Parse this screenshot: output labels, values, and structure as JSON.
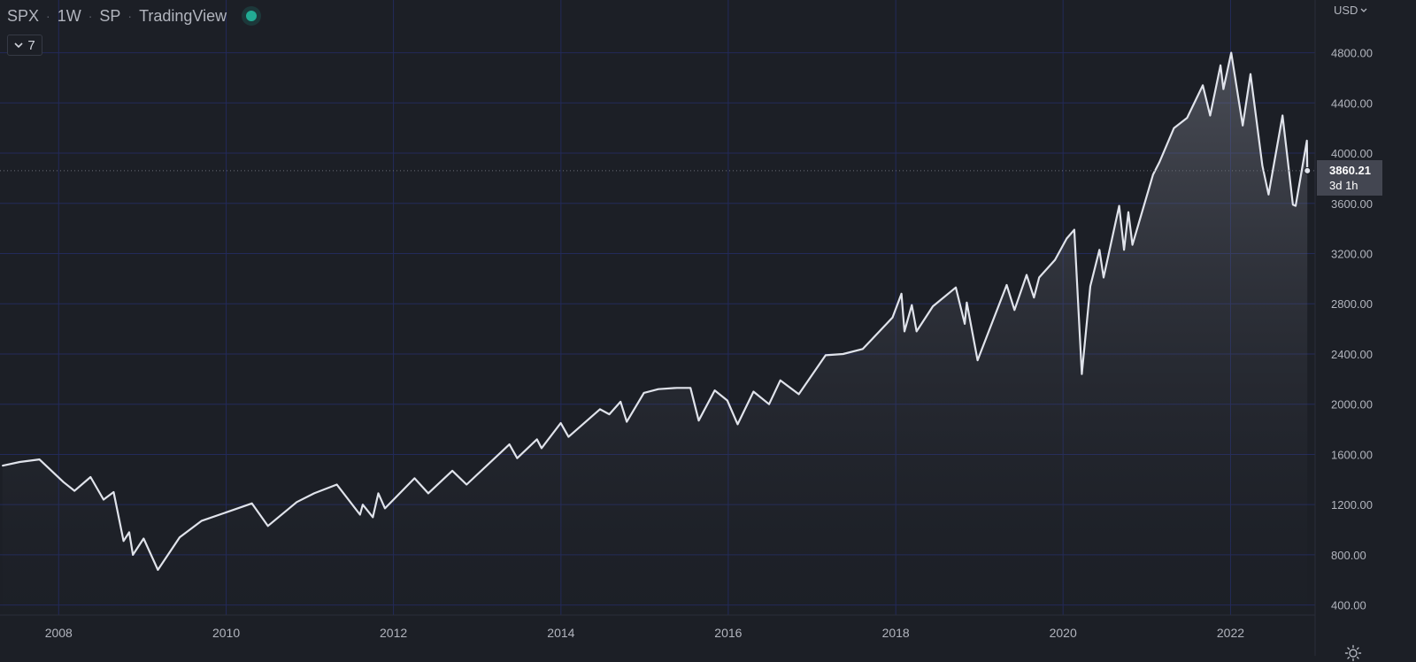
{
  "header": {
    "symbol": "SPX",
    "interval": "1W",
    "exchange": "SP",
    "provider": "TradingView"
  },
  "indicators_toggle": {
    "count": "7"
  },
  "price_scale": {
    "currency": "USD"
  },
  "last_price": {
    "value": "3860.21",
    "countdown": "3d 1h"
  },
  "colors": {
    "background": "#1c1f26",
    "grid": "#232a5a",
    "line": "#e0e3eb",
    "axis_text": "#b2b5be",
    "status_dot": "#22ab94"
  },
  "icons": [
    "chevron-down-icon",
    "settings-icon"
  ],
  "chart_data": {
    "type": "area",
    "x_axis": {
      "type": "date",
      "ticks": [
        "2008",
        "2010",
        "2012",
        "2014",
        "2016",
        "2018",
        "2020",
        "2022"
      ]
    },
    "y_axis": {
      "ticks": [
        "400.00",
        "800.00",
        "1200.00",
        "1600.00",
        "2000.00",
        "2400.00",
        "2800.00",
        "3200.00",
        "3600.00",
        "4000.00",
        "4400.00",
        "4800.00"
      ],
      "ylim": [
        320,
        5220
      ],
      "position": "right"
    },
    "xlim": [
      "2007-04-20",
      "2023-01-05"
    ],
    "grid": true,
    "series": [
      {
        "x": [
          "2007-05-01",
          "2007-07-15",
          "2007-10-09",
          "2008-01-22",
          "2008-03-10",
          "2008-05-19",
          "2008-07-15",
          "2008-08-28",
          "2008-10-10",
          "2008-11-04",
          "2008-11-20",
          "2009-01-06",
          "2009-03-09",
          "2009-06-12",
          "2009-09-15",
          "2010-01-19",
          "2010-04-23",
          "2010-07-02",
          "2010-11-05",
          "2011-01-20",
          "2011-04-29",
          "2011-08-08",
          "2011-08-20",
          "2011-10-03",
          "2011-10-27",
          "2011-11-25",
          "2012-04-02",
          "2012-06-01",
          "2012-09-14",
          "2012-11-15",
          "2013-05-21",
          "2013-06-24",
          "2013-09-18",
          "2013-10-08",
          "2013-12-31",
          "2014-02-03",
          "2014-06-20",
          "2014-07-31",
          "2014-09-18",
          "2014-10-15",
          "2014-12-29",
          "2015-03-02",
          "2015-05-21",
          "2015-07-20",
          "2015-08-25",
          "2015-11-03",
          "2015-12-28",
          "2016-02-11",
          "2016-04-20",
          "2016-06-27",
          "2016-08-15",
          "2016-11-04",
          "2017-03-01",
          "2017-05-16",
          "2017-08-10",
          "2017-12-18",
          "2018-01-26",
          "2018-02-08",
          "2018-03-12",
          "2018-04-02",
          "2018-06-12",
          "2018-09-20",
          "2018-10-29",
          "2018-11-07",
          "2018-12-24",
          "2019-04-30",
          "2019-06-03",
          "2019-07-26",
          "2019-08-27",
          "2019-09-19",
          "2019-11-27",
          "2020-01-17",
          "2020-02-19",
          "2020-03-23",
          "2020-04-29",
          "2020-06-08",
          "2020-06-26",
          "2020-09-02",
          "2020-09-23",
          "2020-10-12",
          "2020-10-30",
          "2021-01-28",
          "2021-02-25",
          "2021-04-29",
          "2021-06-25",
          "2021-09-02",
          "2021-10-04",
          "2021-11-18",
          "2021-12-01",
          "2022-01-04",
          "2022-02-23",
          "2022-03-29",
          "2022-05-20",
          "2022-06-16",
          "2022-08-16",
          "2022-09-30",
          "2022-10-12",
          "2022-11-30",
          "2022-12-02"
        ],
        "y": [
          1510,
          1540,
          1560,
          1380,
          1310,
          1420,
          1240,
          1300,
          910,
          980,
          800,
          930,
          680,
          940,
          1070,
          1150,
          1210,
          1030,
          1220,
          1290,
          1360,
          1120,
          1200,
          1100,
          1290,
          1170,
          1410,
          1290,
          1470,
          1360,
          1680,
          1570,
          1720,
          1650,
          1850,
          1740,
          1960,
          1920,
          2020,
          1860,
          2090,
          2120,
          2130,
          2130,
          1870,
          2110,
          2030,
          1840,
          2100,
          2000,
          2190,
          2080,
          2390,
          2400,
          2440,
          2690,
          2880,
          2580,
          2790,
          2580,
          2780,
          2930,
          2640,
          2810,
          2350,
          2950,
          2750,
          3030,
          2850,
          3010,
          3150,
          3320,
          3390,
          2240,
          2940,
          3230,
          3010,
          3580,
          3230,
          3530,
          3270,
          3830,
          3930,
          4200,
          4280,
          4540,
          4300,
          4700,
          4510,
          4800,
          4220,
          4630,
          3900,
          3670,
          4300,
          3590,
          3580,
          4100,
          3860
        ]
      }
    ]
  }
}
